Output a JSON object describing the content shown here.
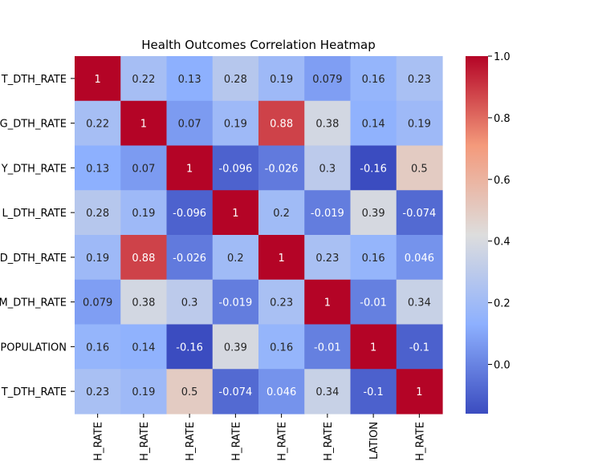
{
  "chart_data": {
    "type": "heatmap",
    "title": "Health Outcomes Correlation Heatmap",
    "row_labels": [
      "T_DTH_RATE",
      "G_DTH_RATE",
      "Y_DTH_RATE",
      "L_DTH_RATE",
      "D_DTH_RATE",
      "M_DTH_RATE",
      "POPULATION",
      "T_DTH_RATE"
    ],
    "col_labels": [
      "H_RATE",
      "H_RATE",
      "H_RATE",
      "H_RATE",
      "H_RATE",
      "H_RATE",
      "LATION",
      "H_RATE"
    ],
    "values": [
      [
        1,
        0.22,
        0.13,
        0.28,
        0.19,
        0.079,
        0.16,
        0.23
      ],
      [
        0.22,
        1,
        0.07,
        0.19,
        0.88,
        0.38,
        0.14,
        0.19
      ],
      [
        0.13,
        0.07,
        1,
        -0.096,
        -0.026,
        0.3,
        -0.16,
        0.5
      ],
      [
        0.28,
        0.19,
        -0.096,
        1,
        0.2,
        -0.019,
        0.39,
        -0.074
      ],
      [
        0.19,
        0.88,
        -0.026,
        0.2,
        1,
        0.23,
        0.16,
        0.046
      ],
      [
        0.079,
        0.38,
        0.3,
        -0.019,
        0.23,
        1,
        -0.01,
        0.34
      ],
      [
        0.16,
        0.14,
        -0.16,
        0.39,
        0.16,
        -0.01,
        1,
        -0.1
      ],
      [
        0.23,
        0.19,
        0.5,
        -0.074,
        0.046,
        0.34,
        -0.1,
        1
      ]
    ],
    "cell_labels": [
      [
        "1",
        "0.22",
        "0.13",
        "0.28",
        "0.19",
        "0.079",
        "0.16",
        "0.23"
      ],
      [
        "0.22",
        "1",
        "0.07",
        "0.19",
        "0.88",
        "0.38",
        "0.14",
        "0.19"
      ],
      [
        "0.13",
        "0.07",
        "1",
        "-0.096",
        "-0.026",
        "0.3",
        "-0.16",
        "0.5"
      ],
      [
        "0.28",
        "0.19",
        "-0.096",
        "1",
        "0.2",
        "-0.019",
        "0.39",
        "-0.074"
      ],
      [
        "0.19",
        "0.88",
        "-0.026",
        "0.2",
        "1",
        "0.23",
        "0.16",
        "0.046"
      ],
      [
        "0.079",
        "0.38",
        "0.3",
        "-0.019",
        "0.23",
        "1",
        "-0.01",
        "0.34"
      ],
      [
        "0.16",
        "0.14",
        "-0.16",
        "0.39",
        "0.16",
        "-0.01",
        "1",
        "-0.1"
      ],
      [
        "0.23",
        "0.19",
        "0.5",
        "-0.074",
        "0.046",
        "0.34",
        "-0.1",
        "1"
      ]
    ],
    "colormap": "coolwarm",
    "vmin": -0.16,
    "vmax": 1.0,
    "colorbar_ticks": [
      "1.0",
      "0.8",
      "0.6",
      "0.4",
      "0.2",
      "0.0"
    ],
    "colorbar_tick_values": [
      1.0,
      0.8,
      0.6,
      0.4,
      0.2,
      0.0
    ],
    "grid": false
  }
}
